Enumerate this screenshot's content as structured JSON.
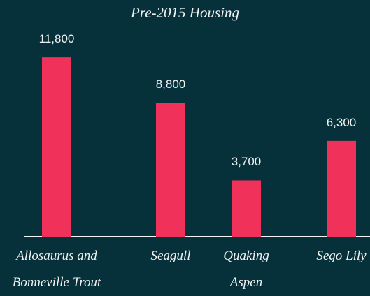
{
  "chart_data": {
    "type": "bar",
    "title": "Pre-2015 Housing",
    "categories": [
      "Allosaurus and Bonneville Trout",
      "Seagull",
      "Quaking Aspen",
      "Sego Lily"
    ],
    "values": [
      11800,
      8800,
      3700,
      6300
    ],
    "value_labels": [
      "11,800",
      "8,800",
      "3,700",
      "6,300"
    ],
    "color": "#f0325a",
    "ylim": [
      0,
      13000
    ]
  }
}
